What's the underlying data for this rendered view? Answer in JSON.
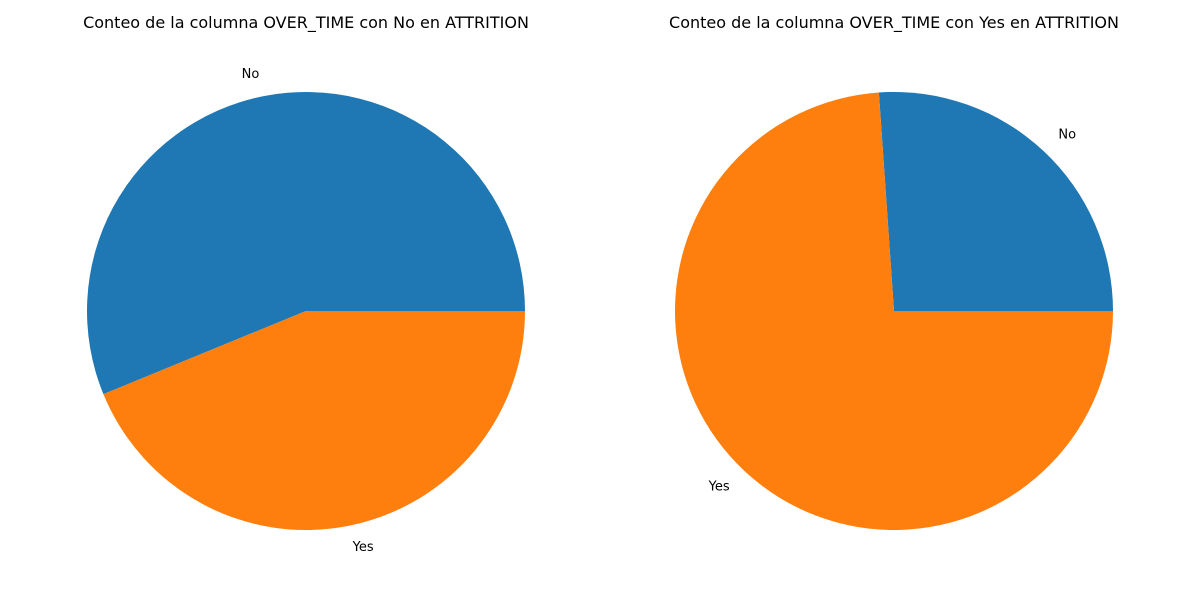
{
  "colors": {
    "No": "#1f77b4",
    "Yes": "#ff7f0e",
    "background": "#ffffff"
  },
  "chart_data": [
    {
      "type": "pie",
      "title": "Conteo de la columna OVER_TIME con No en ATTRITION",
      "labels": [
        "No",
        "Yes"
      ],
      "values": [
        56.2,
        43.8
      ],
      "start_angle_deg": 0,
      "direction": "counterclockwise",
      "legend": "none"
    },
    {
      "type": "pie",
      "title": "Conteo de la columna OVER_TIME con Yes en ATTRITION",
      "labels": [
        "No",
        "Yes"
      ],
      "values": [
        26.1,
        73.9
      ],
      "start_angle_deg": 0,
      "direction": "counterclockwise",
      "legend": "none"
    }
  ]
}
